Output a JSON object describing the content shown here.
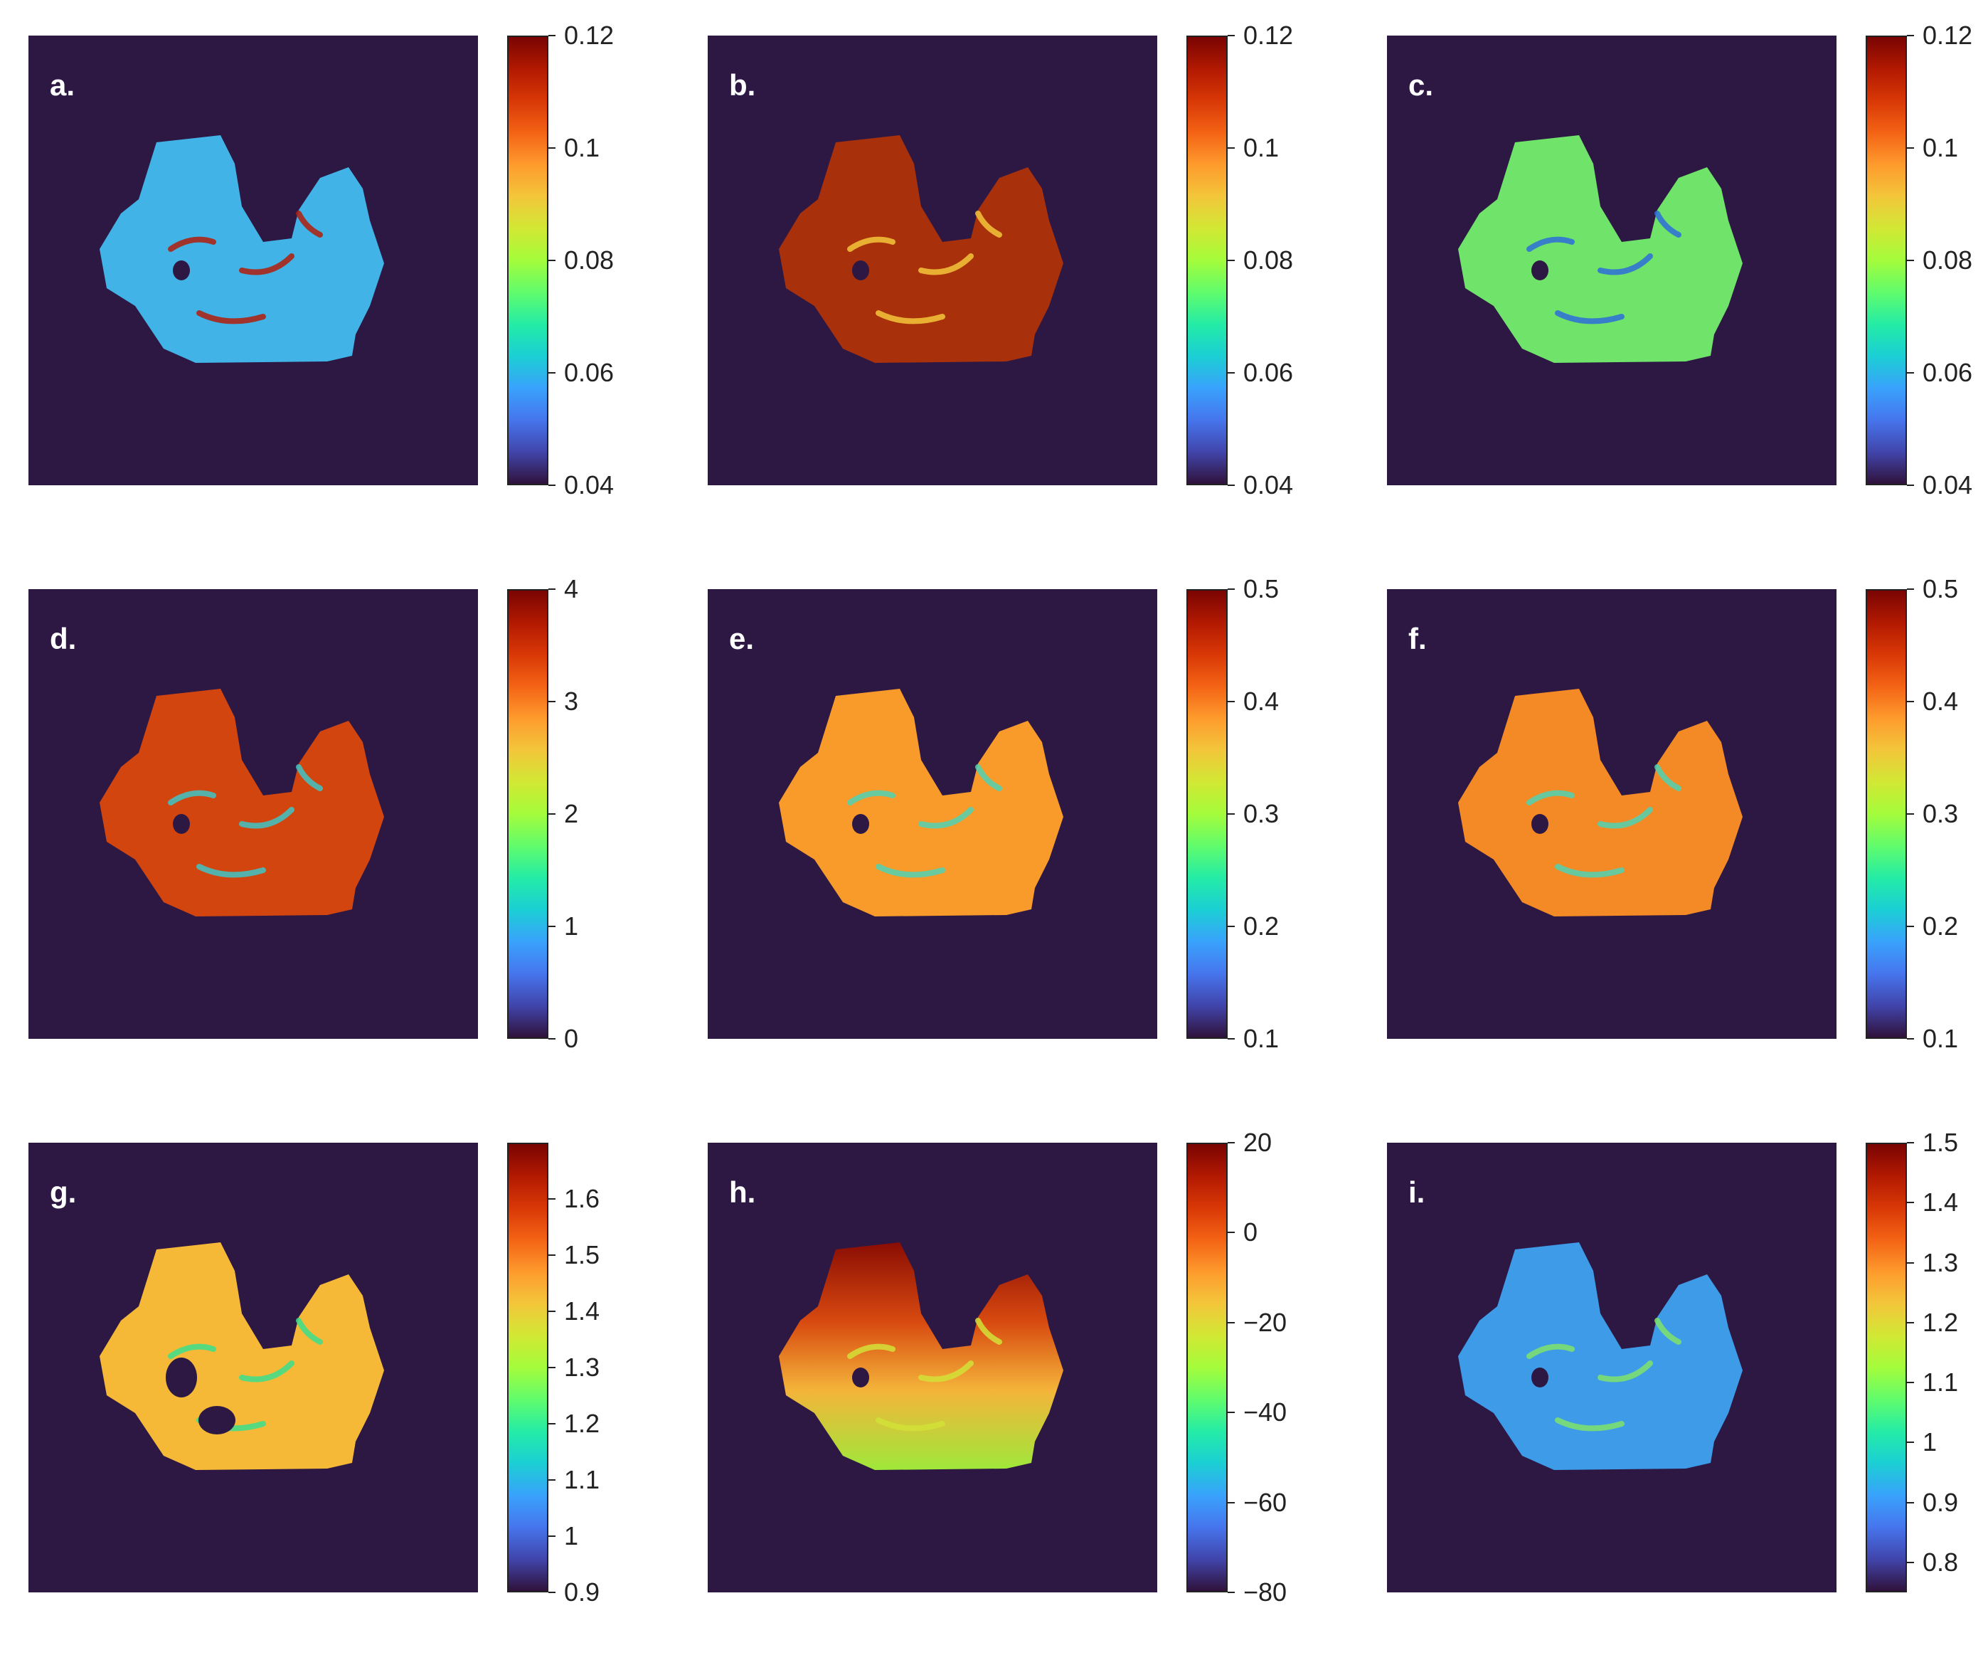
{
  "figure": {
    "panels": [
      {
        "label": "a.",
        "ticks": [
          "0.12",
          "0.1",
          "0.08",
          "0.06",
          "0.04"
        ],
        "tick_values": [
          0.12,
          0.1,
          0.08,
          0.06,
          0.04
        ],
        "range": [
          0.04,
          0.12
        ],
        "fill": "#41b3e6",
        "accent": "#b21d0a"
      },
      {
        "label": "b.",
        "ticks": [
          "0.12",
          "0.1",
          "0.08",
          "0.06",
          "0.04"
        ],
        "tick_values": [
          0.12,
          0.1,
          0.08,
          0.06,
          0.04
        ],
        "range": [
          0.04,
          0.12
        ],
        "fill": "#a8300b",
        "accent": "#f3c63a"
      },
      {
        "label": "c.",
        "ticks": [
          "0.12",
          "0.1",
          "0.08",
          "0.06",
          "0.04"
        ],
        "tick_values": [
          0.12,
          0.1,
          0.08,
          0.06,
          0.04
        ],
        "range": [
          0.04,
          0.12
        ],
        "fill": "#6fe36a",
        "accent": "#2e6fd9"
      },
      {
        "label": "d.",
        "ticks": [
          "4",
          "3",
          "2",
          "1",
          "0"
        ],
        "tick_values": [
          4,
          3,
          2,
          1,
          0
        ],
        "range": [
          0,
          4
        ],
        "fill": "#d2450f",
        "accent": "#3fc6c7"
      },
      {
        "label": "e.",
        "ticks": [
          "0.5",
          "0.4",
          "0.3",
          "0.2",
          "0.1"
        ],
        "tick_values": [
          0.5,
          0.4,
          0.3,
          0.2,
          0.1
        ],
        "range": [
          0.1,
          0.5
        ],
        "fill": "#f89b2a",
        "accent": "#4fd2b3"
      },
      {
        "label": "f.",
        "ticks": [
          "0.5",
          "0.4",
          "0.3",
          "0.2",
          "0.1"
        ],
        "tick_values": [
          0.5,
          0.4,
          0.3,
          0.2,
          0.1
        ],
        "range": [
          0.1,
          0.5
        ],
        "fill": "#f48a25",
        "accent": "#4fd2b3"
      },
      {
        "label": "g.",
        "ticks": [
          "1.6",
          "1.5",
          "1.4",
          "1.3",
          "1.2",
          "1.1",
          "1",
          "0.9"
        ],
        "tick_values": [
          1.6,
          1.5,
          1.4,
          1.3,
          1.2,
          1.1,
          1.0,
          0.9
        ],
        "range": [
          0.9,
          1.7
        ],
        "fill": "#f6b937",
        "accent": "#3bdf8c"
      },
      {
        "label": "h.",
        "ticks": [
          "20",
          "0",
          "−20",
          "−40",
          "−60",
          "−80"
        ],
        "tick_values": [
          20,
          0,
          -20,
          -40,
          -60,
          -80
        ],
        "range": [
          -80,
          20
        ],
        "fill": "#c53a0e",
        "accent": "#d2e038"
      },
      {
        "label": "i.",
        "ticks": [
          "1.5",
          "1.4",
          "1.3",
          "1.2",
          "1.1",
          "1",
          "0.9",
          "0.8"
        ],
        "tick_values": [
          1.5,
          1.4,
          1.3,
          1.2,
          1.1,
          1.0,
          0.9,
          0.8
        ],
        "range": [
          0.75,
          1.5
        ],
        "fill": "#3d9be8",
        "accent": "#7fe36a"
      }
    ],
    "colormap": [
      "#30123b",
      "#4145ab",
      "#4675ed",
      "#39a2fc",
      "#1bcfd4",
      "#24eca6",
      "#61fc6c",
      "#a4fc3b",
      "#d1e834",
      "#f3c63a",
      "#fe9b2d",
      "#f36315",
      "#d93806",
      "#b11901",
      "#7a0402"
    ],
    "background": "#2d1844"
  }
}
